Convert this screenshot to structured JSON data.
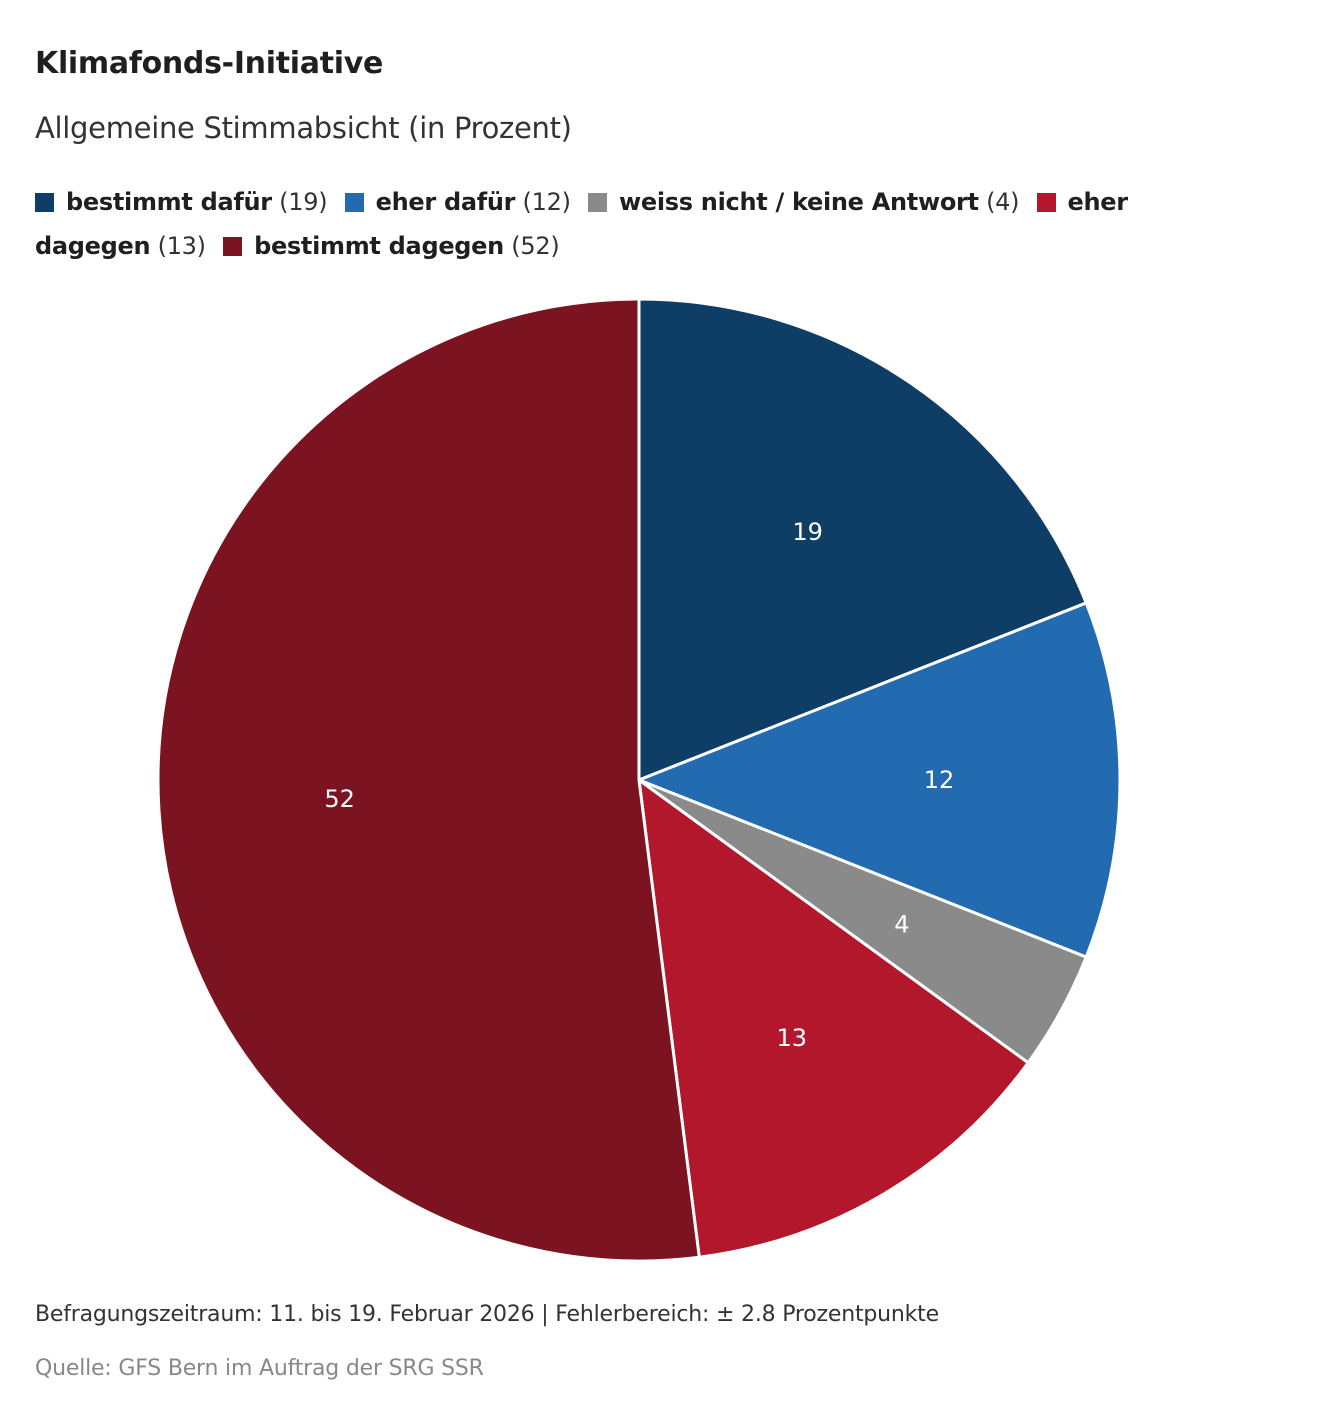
{
  "chart_data": {
    "type": "pie",
    "title": "Klimafonds-Initiative",
    "subtitle": "Allgemeine Stimmabsicht (in Prozent)",
    "slices": [
      {
        "label": "bestimmt dafür",
        "value": 19,
        "color": "#0e3e66"
      },
      {
        "label": "eher dafür",
        "value": 12,
        "color": "#226bb0"
      },
      {
        "label": "weiss nicht / keine Antwort",
        "value": 4,
        "color": "#8a8a8a"
      },
      {
        "label": "eher dagegen",
        "value": 13,
        "color": "#b3172b"
      },
      {
        "label": "bestimmt dagegen",
        "value": 52,
        "color": "#7b1420"
      }
    ],
    "legend_placement": "top"
  },
  "footnote": "Befragungszeitraum: 11. bis 19. Februar 2026 | Fehlerbereich: ± 2.8 Prozentpunkte",
  "source": "Quelle: GFS Bern im Auftrag der SRG SSR"
}
